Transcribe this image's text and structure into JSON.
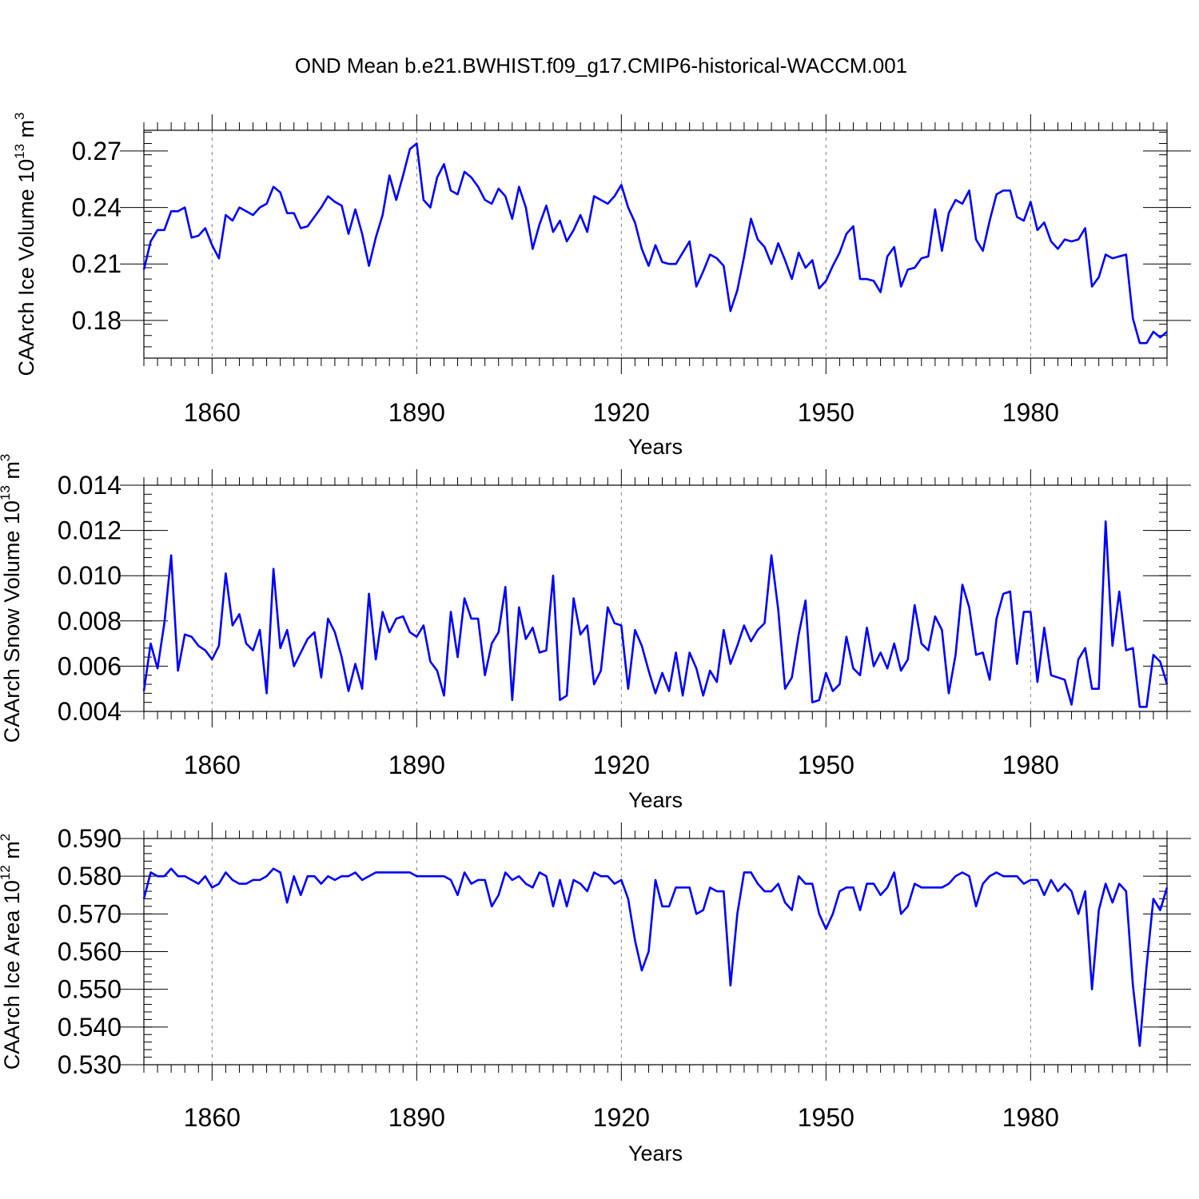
{
  "figure": {
    "title": "OND Mean b.e21.BWHIST.f09_g17.CMIP6-historical-WACCM.001",
    "line_color": "#0000ff",
    "grid_color": "#808080"
  },
  "chart_data": [
    {
      "type": "line",
      "name": "ice-volume",
      "ylabel": "CAArch Ice Volume",
      "units_base": "10",
      "units_exp": "13",
      "units_unit": "m",
      "units_unit_exp": "3",
      "xlabel": "Years",
      "xlim": [
        1850,
        2000
      ],
      "ylim": [
        0.16,
        0.281
      ],
      "xticks": [
        1860,
        1890,
        1920,
        1950,
        1980
      ],
      "xtick_labels": [
        "1860",
        "1890",
        "1920",
        "1950",
        "1980"
      ],
      "yticks": [
        0.18,
        0.21,
        0.24,
        0.27
      ],
      "ytick_labels": [
        "0.18",
        "0.21",
        "0.24",
        "0.27"
      ],
      "y_minor_step": 0.006,
      "x_start": 1850,
      "values": [
        0.207,
        0.222,
        0.228,
        0.228,
        0.238,
        0.238,
        0.24,
        0.224,
        0.225,
        0.229,
        0.22,
        0.213,
        0.236,
        0.233,
        0.24,
        0.238,
        0.236,
        0.24,
        0.242,
        0.251,
        0.248,
        0.237,
        0.237,
        0.229,
        0.23,
        0.235,
        0.24,
        0.246,
        0.243,
        0.241,
        0.226,
        0.239,
        0.226,
        0.209,
        0.224,
        0.236,
        0.257,
        0.244,
        0.257,
        0.271,
        0.274,
        0.244,
        0.24,
        0.256,
        0.263,
        0.249,
        0.247,
        0.259,
        0.256,
        0.251,
        0.244,
        0.242,
        0.25,
        0.246,
        0.234,
        0.251,
        0.24,
        0.218,
        0.231,
        0.241,
        0.227,
        0.233,
        0.222,
        0.228,
        0.236,
        0.227,
        0.246,
        0.244,
        0.242,
        0.246,
        0.252,
        0.24,
        0.232,
        0.218,
        0.209,
        0.22,
        0.211,
        0.21,
        0.21,
        0.216,
        0.222,
        0.198,
        0.206,
        0.215,
        0.213,
        0.209,
        0.185,
        0.196,
        0.214,
        0.234,
        0.223,
        0.219,
        0.21,
        0.221,
        0.212,
        0.202,
        0.216,
        0.208,
        0.212,
        0.197,
        0.201,
        0.209,
        0.216,
        0.226,
        0.23,
        0.202,
        0.202,
        0.201,
        0.195,
        0.214,
        0.219,
        0.198,
        0.207,
        0.208,
        0.213,
        0.214,
        0.239,
        0.217,
        0.237,
        0.244,
        0.242,
        0.249,
        0.223,
        0.217,
        0.233,
        0.247,
        0.249,
        0.249,
        0.235,
        0.233,
        0.243,
        0.228,
        0.232,
        0.222,
        0.218,
        0.223,
        0.222,
        0.223,
        0.229,
        0.198,
        0.203,
        0.215,
        0.213,
        0.214,
        0.215,
        0.181,
        0.168,
        0.168,
        0.174,
        0.171,
        0.174
      ]
    },
    {
      "type": "line",
      "name": "snow-volume",
      "ylabel": "CAArch Snow Volume",
      "units_base": "10",
      "units_exp": "13",
      "units_unit": "m",
      "units_unit_exp": "3",
      "xlabel": "Years",
      "xlim": [
        1850,
        2000
      ],
      "ylim": [
        0.004,
        0.014
      ],
      "xticks": [
        1860,
        1890,
        1920,
        1950,
        1980
      ],
      "xtick_labels": [
        "1860",
        "1890",
        "1920",
        "1950",
        "1980"
      ],
      "yticks": [
        0.004,
        0.006,
        0.008,
        0.01,
        0.012,
        0.014
      ],
      "ytick_labels": [
        "0.004",
        "0.006",
        "0.008",
        "0.010",
        "0.012",
        "0.014"
      ],
      "y_minor_step": 0.0004,
      "x_start": 1850,
      "values": [
        0.0049,
        0.007,
        0.0059,
        0.0079,
        0.0109,
        0.0058,
        0.0074,
        0.0073,
        0.0069,
        0.0067,
        0.0063,
        0.0069,
        0.0101,
        0.0078,
        0.0083,
        0.007,
        0.0067,
        0.0076,
        0.0048,
        0.0103,
        0.0068,
        0.0076,
        0.006,
        0.0066,
        0.0072,
        0.0075,
        0.0055,
        0.0081,
        0.0075,
        0.0064,
        0.0049,
        0.0061,
        0.005,
        0.0092,
        0.0063,
        0.0084,
        0.0075,
        0.0081,
        0.0082,
        0.0075,
        0.0073,
        0.0078,
        0.0062,
        0.0058,
        0.0047,
        0.0084,
        0.0064,
        0.009,
        0.0081,
        0.0081,
        0.0056,
        0.007,
        0.0075,
        0.0095,
        0.0045,
        0.0086,
        0.0072,
        0.0077,
        0.0066,
        0.0067,
        0.01,
        0.0045,
        0.0047,
        0.009,
        0.0074,
        0.0078,
        0.0052,
        0.0058,
        0.0086,
        0.0079,
        0.0078,
        0.005,
        0.0076,
        0.0069,
        0.0058,
        0.0048,
        0.0057,
        0.0049,
        0.0066,
        0.0047,
        0.0066,
        0.0059,
        0.0047,
        0.0058,
        0.0053,
        0.0076,
        0.0061,
        0.0069,
        0.0078,
        0.0071,
        0.0076,
        0.0079,
        0.0109,
        0.0085,
        0.005,
        0.0055,
        0.0074,
        0.0089,
        0.0044,
        0.0045,
        0.0057,
        0.0049,
        0.0052,
        0.0073,
        0.0059,
        0.0056,
        0.0077,
        0.006,
        0.0066,
        0.0059,
        0.007,
        0.0058,
        0.0063,
        0.0087,
        0.007,
        0.0067,
        0.0082,
        0.0076,
        0.0048,
        0.0065,
        0.0096,
        0.0086,
        0.0065,
        0.0066,
        0.0054,
        0.0081,
        0.0092,
        0.0093,
        0.0061,
        0.0084,
        0.0084,
        0.0053,
        0.0077,
        0.0056,
        0.0055,
        0.0054,
        0.0043,
        0.0063,
        0.0068,
        0.005,
        0.005,
        0.0124,
        0.0069,
        0.0093,
        0.0067,
        0.0068,
        0.0042,
        0.0042,
        0.0065,
        0.0062,
        0.0052
      ]
    },
    {
      "type": "line",
      "name": "ice-area",
      "ylabel": "CAArch Ice Area",
      "units_base": "10",
      "units_exp": "12",
      "units_unit": "m",
      "units_unit_exp": "2",
      "xlabel": "Years",
      "xlim": [
        1850,
        2000
      ],
      "ylim": [
        0.53,
        0.59
      ],
      "xticks": [
        1860,
        1890,
        1920,
        1950,
        1980
      ],
      "xtick_labels": [
        "1860",
        "1890",
        "1920",
        "1950",
        "1980"
      ],
      "yticks": [
        0.53,
        0.54,
        0.55,
        0.56,
        0.57,
        0.58,
        0.59
      ],
      "ytick_labels": [
        "0.530",
        "0.540",
        "0.550",
        "0.560",
        "0.570",
        "0.580",
        "0.590"
      ],
      "y_minor_step": 0.002,
      "x_start": 1850,
      "values": [
        0.574,
        0.581,
        0.58,
        0.58,
        0.582,
        0.58,
        0.58,
        0.579,
        0.578,
        0.58,
        0.577,
        0.578,
        0.581,
        0.579,
        0.578,
        0.578,
        0.579,
        0.579,
        0.58,
        0.582,
        0.581,
        0.573,
        0.58,
        0.575,
        0.58,
        0.58,
        0.578,
        0.58,
        0.579,
        0.58,
        0.58,
        0.581,
        0.579,
        0.58,
        0.581,
        0.581,
        0.581,
        0.581,
        0.581,
        0.581,
        0.58,
        0.58,
        0.58,
        0.58,
        0.58,
        0.579,
        0.575,
        0.581,
        0.578,
        0.579,
        0.579,
        0.572,
        0.575,
        0.581,
        0.579,
        0.58,
        0.578,
        0.577,
        0.581,
        0.58,
        0.572,
        0.579,
        0.572,
        0.579,
        0.578,
        0.576,
        0.581,
        0.58,
        0.58,
        0.578,
        0.579,
        0.574,
        0.563,
        0.555,
        0.56,
        0.579,
        0.572,
        0.572,
        0.577,
        0.577,
        0.577,
        0.57,
        0.571,
        0.577,
        0.576,
        0.576,
        0.551,
        0.57,
        0.581,
        0.581,
        0.578,
        0.576,
        0.576,
        0.578,
        0.573,
        0.571,
        0.58,
        0.578,
        0.578,
        0.57,
        0.566,
        0.57,
        0.576,
        0.577,
        0.577,
        0.571,
        0.578,
        0.578,
        0.575,
        0.577,
        0.581,
        0.57,
        0.572,
        0.578,
        0.577,
        0.577,
        0.577,
        0.577,
        0.578,
        0.58,
        0.581,
        0.58,
        0.572,
        0.578,
        0.58,
        0.581,
        0.58,
        0.58,
        0.58,
        0.578,
        0.579,
        0.579,
        0.575,
        0.579,
        0.576,
        0.578,
        0.576,
        0.57,
        0.576,
        0.55,
        0.571,
        0.578,
        0.573,
        0.578,
        0.576,
        0.551,
        0.535,
        0.556,
        0.574,
        0.571,
        0.577
      ]
    }
  ]
}
